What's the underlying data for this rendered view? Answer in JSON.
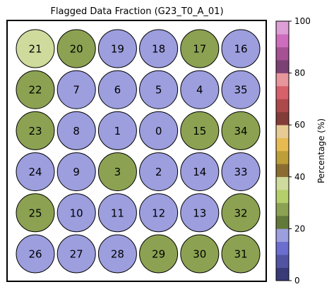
{
  "chart_data": {
    "type": "heatmap",
    "title": "Flagged Data Fraction (G23_T0_A_01)",
    "colorbar": {
      "label": "Percentage (%)",
      "range": [
        0,
        100
      ],
      "ticks": [
        "0",
        "20",
        "40",
        "60",
        "80",
        "100"
      ],
      "colors": [
        "#393b79",
        "#5254a3",
        "#6b6ecf",
        "#9c9ede",
        "#637939",
        "#8ca252",
        "#b5cf6b",
        "#cedb9c",
        "#8c6d31",
        "#bd9e39",
        "#e7ba52",
        "#e7cb94",
        "#843c39",
        "#ad494a",
        "#d6616b",
        "#e7969c",
        "#7b4173",
        "#a55194",
        "#ce6dbd",
        "#de9ed6"
      ]
    },
    "grid": {
      "rows": 6,
      "cols": 6,
      "cells": [
        [
          {
            "label": "21",
            "value": 36
          },
          {
            "label": "20",
            "value": 26
          },
          {
            "label": "19",
            "value": 18
          },
          {
            "label": "18",
            "value": 18
          },
          {
            "label": "17",
            "value": 26
          },
          {
            "label": "16",
            "value": 18
          }
        ],
        [
          {
            "label": "22",
            "value": 26
          },
          {
            "label": "7",
            "value": 18
          },
          {
            "label": "6",
            "value": 18
          },
          {
            "label": "5",
            "value": 18
          },
          {
            "label": "4",
            "value": 18
          },
          {
            "label": "35",
            "value": 18
          }
        ],
        [
          {
            "label": "23",
            "value": 26
          },
          {
            "label": "8",
            "value": 18
          },
          {
            "label": "1",
            "value": 18
          },
          {
            "label": "0",
            "value": 18
          },
          {
            "label": "15",
            "value": 26
          },
          {
            "label": "34",
            "value": 26
          }
        ],
        [
          {
            "label": "24",
            "value": 18
          },
          {
            "label": "9",
            "value": 18
          },
          {
            "label": "3",
            "value": 26
          },
          {
            "label": "2",
            "value": 18
          },
          {
            "label": "14",
            "value": 18
          },
          {
            "label": "33",
            "value": 18
          }
        ],
        [
          {
            "label": "25",
            "value": 26
          },
          {
            "label": "10",
            "value": 18
          },
          {
            "label": "11",
            "value": 18
          },
          {
            "label": "12",
            "value": 18
          },
          {
            "label": "13",
            "value": 18
          },
          {
            "label": "32",
            "value": 26
          }
        ],
        [
          {
            "label": "26",
            "value": 18
          },
          {
            "label": "27",
            "value": 18
          },
          {
            "label": "28",
            "value": 18
          },
          {
            "label": "29",
            "value": 26
          },
          {
            "label": "30",
            "value": 26
          },
          {
            "label": "31",
            "value": 26
          }
        ]
      ]
    }
  }
}
